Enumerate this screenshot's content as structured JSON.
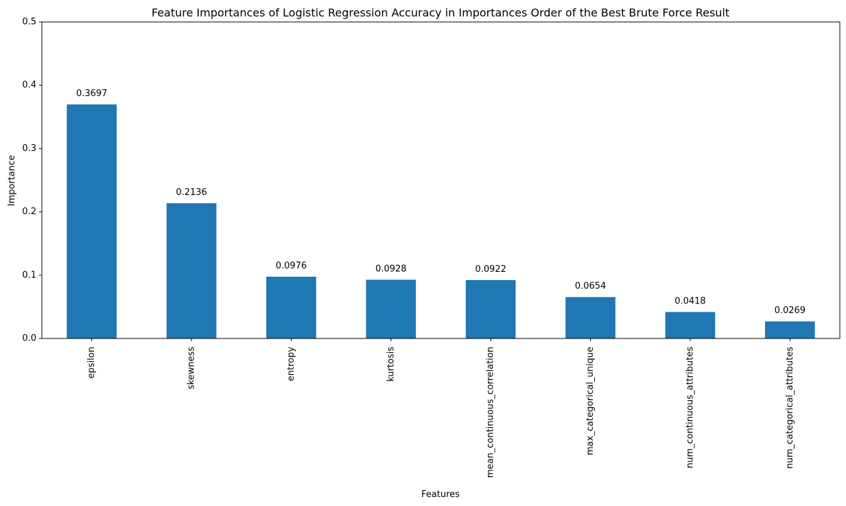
{
  "chart_data": {
    "type": "bar",
    "title": "Feature Importances of Logistic Regression Accuracy in Importances Order of the Best Brute Force Result",
    "xlabel": "Features",
    "ylabel": "Importance",
    "categories": [
      "epsilon",
      "skewness",
      "entropy",
      "kurtosis",
      "mean_continuous_correlation",
      "max_categorical_unique",
      "num_continuous_attributes",
      "num_categorical_attributes"
    ],
    "values": [
      0.3697,
      0.2136,
      0.0976,
      0.0928,
      0.0922,
      0.0654,
      0.0418,
      0.0269
    ],
    "data_labels": [
      "0.3697",
      "0.2136",
      "0.0976",
      "0.0928",
      "0.0922",
      "0.0654",
      "0.0418",
      "0.0269"
    ],
    "ylim": [
      0,
      0.5
    ],
    "yticks": [
      0.0,
      0.1,
      0.2,
      0.3,
      0.4,
      0.5
    ],
    "ytick_labels": [
      "0.0",
      "0.1",
      "0.2",
      "0.3",
      "0.4",
      "0.5"
    ],
    "bar_color": "#1f77b4",
    "grid": false,
    "legend": "none"
  }
}
